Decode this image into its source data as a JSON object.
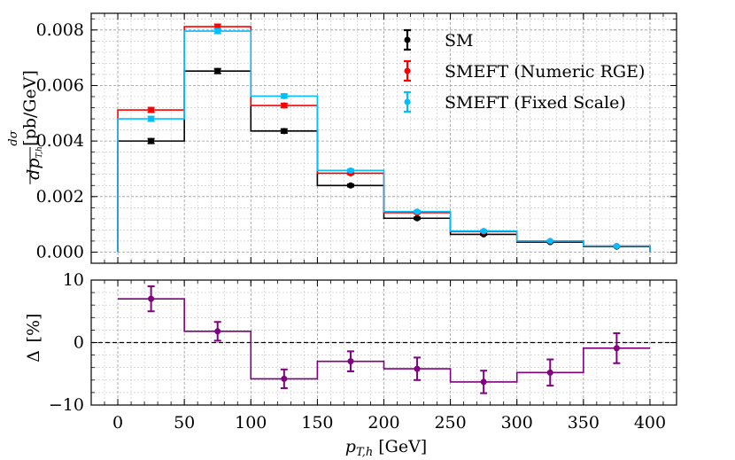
{
  "chart_data": [
    {
      "type": "line",
      "panel": "top",
      "style": "step-histogram-with-errorbars",
      "title": "",
      "ylabel": "dσ/dp_{T,h} [pb/GeV]",
      "ylabel_parts": {
        "num": "dσ",
        "den": "dp",
        "den_sub": "T,h",
        "unit": "[pb/GeV]"
      },
      "xlim": [
        -20,
        420
      ],
      "ylim": [
        -0.0004,
        0.0086
      ],
      "yticks": [
        0.0,
        0.002,
        0.004,
        0.006,
        0.008
      ],
      "ytick_labels": [
        "0.000",
        "0.002",
        "0.004",
        "0.006",
        "0.008"
      ],
      "bin_edges": [
        0,
        50,
        100,
        150,
        200,
        250,
        300,
        350,
        400
      ],
      "bin_centers": [
        25,
        75,
        125,
        175,
        225,
        275,
        325,
        375
      ],
      "grid": true,
      "legend_position": "top-right",
      "series": [
        {
          "name": "SM",
          "color": "#000000",
          "values": [
            0.004,
            0.00652,
            0.00436,
            0.0024,
            0.00122,
            0.00064,
            0.00036,
            0.0002
          ],
          "errors": [
            8e-05,
            8e-05,
            7e-05,
            4e-05,
            3e-05,
            2e-05,
            1e-05,
            1e-05
          ]
        },
        {
          "name": "SMEFT (Numeric RGE)",
          "color": "#ff0000",
          "values": [
            0.00512,
            0.00812,
            0.00528,
            0.00284,
            0.00142,
            0.00074,
            0.0004,
            0.00022
          ],
          "errors": [
            8e-05,
            8e-05,
            7e-05,
            4e-05,
            3e-05,
            2e-05,
            1e-05,
            1e-05
          ]
        },
        {
          "name": "SMEFT (Fixed Scale)",
          "color": "#00bfff",
          "values": [
            0.0048,
            0.00796,
            0.00562,
            0.00294,
            0.00146,
            0.00076,
            0.0004,
            0.00022
          ],
          "errors": [
            8e-05,
            8e-05,
            7e-05,
            4e-05,
            3e-05,
            2e-05,
            1e-05,
            1e-05
          ]
        }
      ]
    },
    {
      "type": "line",
      "panel": "bottom",
      "style": "step-histogram-with-errorbars",
      "title": "",
      "xlabel": "p_{T,h} [GeV]",
      "xlabel_parts": {
        "var": "p",
        "sub": "T,h",
        "unit": "[GeV]"
      },
      "ylabel": "Δ [%]",
      "ylabel_parts": {
        "symbol": "Δ",
        "unit": "[%]"
      },
      "xlim": [
        -20,
        420
      ],
      "ylim": [
        -10,
        10
      ],
      "xticks": [
        0,
        50,
        100,
        150,
        200,
        250,
        300,
        350,
        400
      ],
      "xtick_labels": [
        "0",
        "50",
        "100",
        "150",
        "200",
        "250",
        "300",
        "350",
        "400"
      ],
      "yticks": [
        -10,
        0,
        10
      ],
      "ytick_labels": [
        "−10",
        "0",
        "10"
      ],
      "reference_line": 0,
      "grid": true,
      "bin_edges": [
        0,
        50,
        100,
        150,
        200,
        250,
        300,
        350,
        400
      ],
      "bin_centers": [
        25,
        75,
        125,
        175,
        225,
        275,
        325,
        375
      ],
      "series": [
        {
          "name": "Δ",
          "color": "#800080",
          "values": [
            7.0,
            1.8,
            -5.8,
            -3.0,
            -4.2,
            -6.3,
            -4.8,
            -0.9
          ],
          "errors": [
            2.0,
            1.5,
            1.5,
            1.6,
            1.8,
            1.8,
            2.1,
            2.4
          ]
        }
      ]
    }
  ]
}
